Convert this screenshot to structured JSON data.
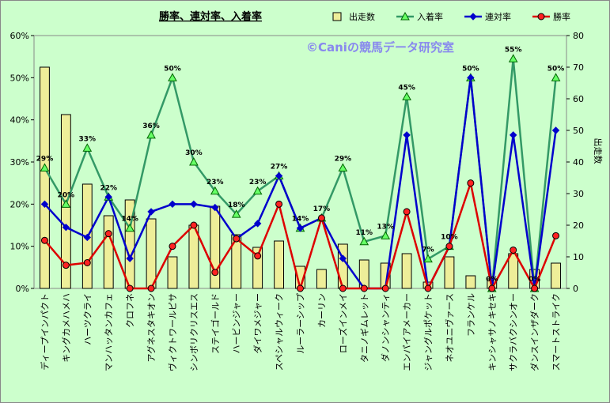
{
  "chart_data": {
    "type": "bar+line",
    "title": "勝率、連対率、入着率",
    "watermark": "©Caniの競馬データ研究室",
    "y_right_label": "出走数",
    "ylim_left": [
      0,
      60
    ],
    "ylim_right": [
      0,
      80
    ],
    "y_left_ticks": [
      "0%",
      "10%",
      "20%",
      "30%",
      "40%",
      "50%",
      "60%"
    ],
    "y_right_ticks": [
      "0",
      "10",
      "20",
      "30",
      "40",
      "50",
      "60",
      "70",
      "80"
    ],
    "grid": false,
    "legend_placement": "top",
    "categories": [
      "ディープインパクト",
      "キングカメハメハ",
      "ハーツクライ",
      "マンハッタンカフェ",
      "クロフネ",
      "アグネスタキオン",
      "ヴィクトワールピサ",
      "シンボリクリスエス",
      "ステイゴールド",
      "ハービンジャー",
      "ダイワメジャー",
      "スペシャルウィーク",
      "ルーラーシップ",
      "カーリン",
      "ローズインメイ",
      "タニノギムレット",
      "ダノンシャンティ",
      "エンパイアメーカー",
      "ジャングルポケット",
      "ネオユニヴァース",
      "フランケル",
      "キンシャサノキセキ",
      "サクラバクシンオー",
      "ダンスインザダーク",
      "スマートストライク"
    ],
    "series": [
      {
        "name": "出走数",
        "type": "bar",
        "axis": "right",
        "color": "#eeee99",
        "values": [
          70,
          55,
          33,
          23,
          28,
          22,
          10,
          20,
          26,
          17,
          13,
          15,
          7,
          6,
          14,
          9,
          8,
          11,
          2,
          10,
          4,
          3,
          11,
          6,
          8
        ]
      },
      {
        "name": "入着率",
        "type": "line",
        "axis": "left",
        "color": "#339966",
        "marker": "triangle",
        "values": [
          28.6,
          20,
          33.3,
          21.7,
          14.3,
          36.4,
          50,
          30,
          23.1,
          17.6,
          23.1,
          26.7,
          14.3,
          16.7,
          28.6,
          11.1,
          12.5,
          45.5,
          7,
          10,
          50,
          0,
          54.5,
          0,
          50
        ]
      },
      {
        "name": "連対率",
        "type": "line",
        "axis": "left",
        "color": "#0000cc",
        "marker": "diamond",
        "values": [
          20,
          14.5,
          12.1,
          21.7,
          7.1,
          18.2,
          20,
          20,
          19.2,
          11.8,
          15.4,
          26.7,
          14.3,
          16.7,
          7.1,
          0,
          0,
          36.4,
          0,
          10,
          50,
          0,
          36.4,
          0,
          37.5
        ]
      },
      {
        "name": "勝率",
        "type": "line",
        "axis": "left",
        "color": "#dd0000",
        "marker": "circle",
        "values": [
          11.4,
          5.5,
          6.1,
          13,
          0,
          0,
          10,
          15,
          3.8,
          11.8,
          7.7,
          20,
          0,
          16.7,
          0,
          0,
          0,
          18.2,
          0,
          10,
          25,
          0,
          9.1,
          0,
          12.5
        ]
      }
    ],
    "data_labels_on": "入着率",
    "data_labels": [
      "29%",
      "20%",
      "33%",
      "22%",
      "14%",
      "36%",
      "50%",
      "30%",
      "23%",
      "18%",
      "23%",
      "27%",
      "14%",
      "17%",
      "29%",
      "11%",
      "13%",
      "45%",
      "7%",
      "10%",
      "50%",
      "0%",
      "55%",
      "0%",
      "50%"
    ]
  }
}
